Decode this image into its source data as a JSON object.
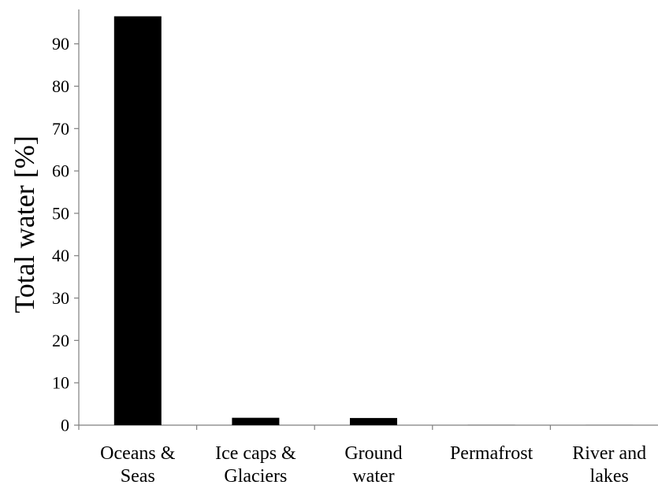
{
  "chart_data": {
    "type": "bar",
    "title": "",
    "xlabel": "",
    "ylabel": "Total water [%]",
    "ylim": [
      0,
      97
    ],
    "yticks": [
      0,
      10,
      20,
      30,
      40,
      50,
      60,
      70,
      80,
      90
    ],
    "grid": false,
    "legend": "none",
    "categories": [
      [
        "Oceans &",
        "Seas"
      ],
      [
        "Ice caps &",
        "Glaciers"
      ],
      [
        "Ground",
        "water"
      ],
      [
        "Permafrost"
      ],
      [
        "River and",
        "lakes"
      ]
    ],
    "series": [
      {
        "values": [
          96.5,
          1.74,
          1.69,
          0.022,
          0.013
        ]
      }
    ],
    "bar_color": "#000000",
    "axis_color": "#7f7f7f"
  }
}
